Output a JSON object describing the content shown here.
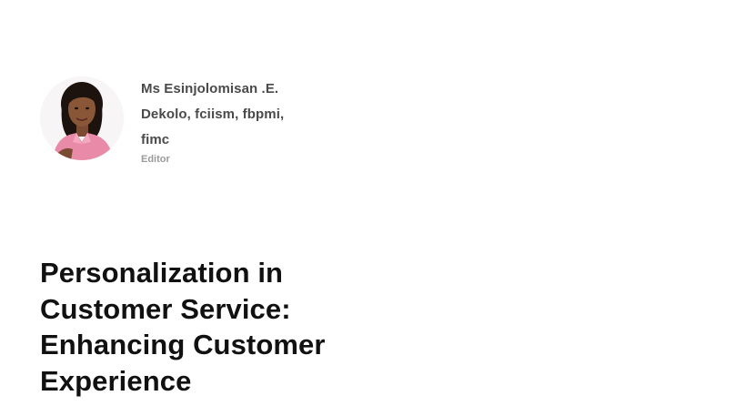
{
  "author": {
    "name": "Ms Esinjolomisan .E. Dekolo, fciism, fbpmi, fimc",
    "role": "Editor",
    "avatar_icon": "author-portrait"
  },
  "article": {
    "title": "Personalization in Customer Service: Enhancing Customer Experience"
  }
}
